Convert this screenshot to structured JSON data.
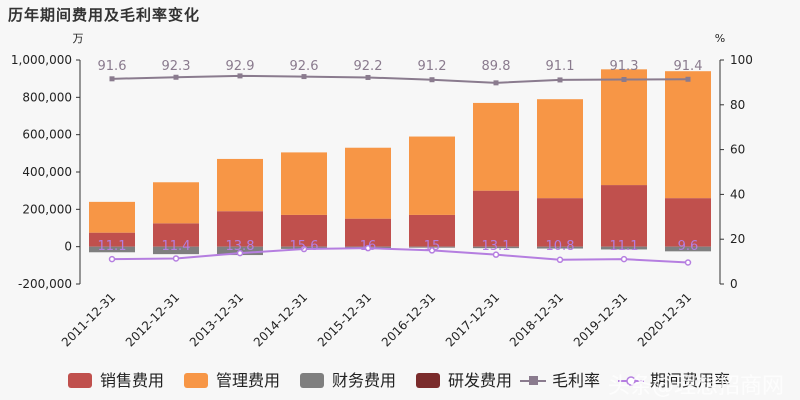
{
  "title": "历年期间费用及毛利率变化",
  "left_unit": "万",
  "right_unit": "%",
  "watermark": "头条@理想招商网",
  "colors": {
    "sales": "#c0504d",
    "admin": "#f79646",
    "finance": "#7f7f7f",
    "rnd": "#7b2c2c",
    "gross_margin": "#8a7b8e",
    "period_ratio": "#b57ee0"
  },
  "chart_data": {
    "type": "bar",
    "title": "历年期间费用及毛利率变化",
    "categories": [
      "2011-12-31",
      "2012-12-31",
      "2013-12-31",
      "2014-12-31",
      "2015-12-31",
      "2016-12-31",
      "2017-12-31",
      "2018-12-31",
      "2019-12-31",
      "2020-12-31"
    ],
    "ylim": [
      -200000,
      1000000
    ],
    "y_ticks": [
      "1,000,000",
      "800,000",
      "600,000",
      "400,000",
      "200,000",
      "0",
      "-200,000"
    ],
    "y2lim": [
      0,
      100
    ],
    "y2_ticks": [
      "100",
      "80",
      "60",
      "40",
      "20",
      "0"
    ],
    "series": [
      {
        "name": "销售费用",
        "values": [
          75000,
          125000,
          190000,
          170000,
          150000,
          170000,
          300000,
          260000,
          330000,
          260000
        ]
      },
      {
        "name": "管理费用",
        "values": [
          165000,
          220000,
          280000,
          335000,
          380000,
          420000,
          470000,
          530000,
          620000,
          680000
        ]
      },
      {
        "name": "财务费用",
        "values": [
          -30000,
          -40000,
          -45000,
          -12000,
          -10000,
          -5000,
          -8000,
          -10000,
          -15000,
          -25000
        ]
      },
      {
        "name": "研发费用",
        "values": [
          0,
          0,
          0,
          0,
          0,
          0,
          0,
          0,
          0,
          0
        ]
      }
    ],
    "lines": [
      {
        "name": "毛利率",
        "values": [
          91.6,
          92.3,
          92.9,
          92.6,
          92.2,
          91.2,
          89.8,
          91.1,
          91.3,
          91.4
        ]
      },
      {
        "name": "期间费用率",
        "values": [
          11.1,
          11.4,
          13.8,
          15.6,
          16,
          15,
          13.1,
          10.8,
          11.1,
          9.6
        ]
      }
    ],
    "gross_margin_labels": [
      "91.6",
      "92.3",
      "92.9",
      "92.6",
      "92.2",
      "91.2",
      "89.8",
      "91.1",
      "91.3",
      "91.4"
    ],
    "period_ratio_labels": [
      "11.1",
      "11.4",
      "13.8",
      "15.6",
      "16",
      "15",
      "13.1",
      "10.8",
      "11.1",
      "9.6"
    ],
    "legend": [
      "销售费用",
      "管理费用",
      "财务费用",
      "研发费用",
      "毛利率",
      "期间费用率"
    ],
    "legend_position": "bottom",
    "grid": false
  }
}
